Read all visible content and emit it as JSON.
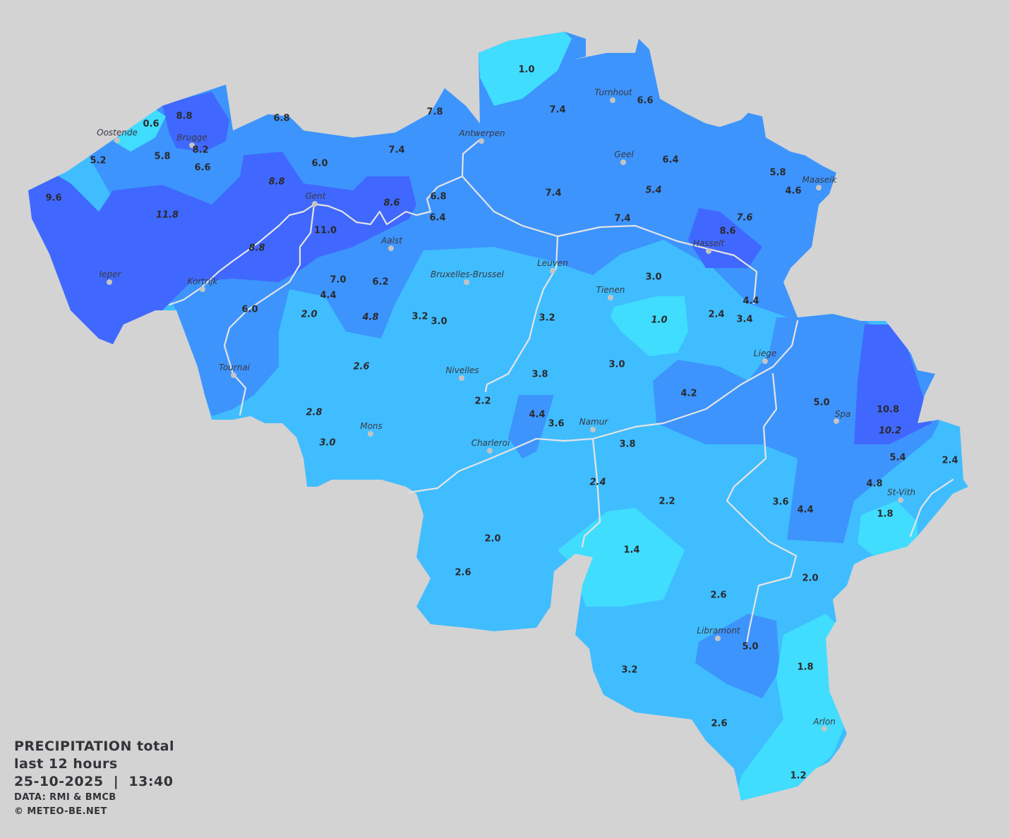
{
  "map": {
    "colors": {
      "background": "#d3d3d3",
      "level_cyan": "#40ddfe",
      "level_light": "#40bdfe",
      "level_mid": "#3d94fd",
      "level_dark": "#4068fe",
      "rivers": "#e4e4e4"
    },
    "cities": [
      "Oostende",
      "Brugge",
      "Antwerpen",
      "Turnhout",
      "Geel",
      "Maaseik",
      "Gent",
      "Aalst",
      "Hasselt",
      "Leuven",
      "Bruxelles-Brussel",
      "Ieper",
      "Kortrijk",
      "Tienen",
      "Liege",
      "Tournai",
      "Nivelles",
      "Spa",
      "Namur",
      "Mons",
      "Charleroi",
      "St-Vith",
      "Libramont",
      "Arlon"
    ],
    "values": [
      {
        "v": "1.0",
        "italic": false
      },
      {
        "v": "7.8",
        "italic": false
      },
      {
        "v": "7.4",
        "italic": false
      },
      {
        "v": "6.6",
        "italic": false
      },
      {
        "v": "8.8",
        "italic": false
      },
      {
        "v": "0.6",
        "italic": false
      },
      {
        "v": "8.2",
        "italic": false
      },
      {
        "v": "6.8",
        "italic": false
      },
      {
        "v": "5.2",
        "italic": false
      },
      {
        "v": "5.8",
        "italic": false
      },
      {
        "v": "6.6",
        "italic": false
      },
      {
        "v": "6.0",
        "italic": false
      },
      {
        "v": "7.4",
        "italic": false
      },
      {
        "v": "6.4",
        "italic": false
      },
      {
        "v": "5.8",
        "italic": false
      },
      {
        "v": "4.6",
        "italic": false
      },
      {
        "v": "9.6",
        "italic": false
      },
      {
        "v": "8.8",
        "italic": true
      },
      {
        "v": "8.6",
        "italic": true
      },
      {
        "v": "6.8",
        "italic": false
      },
      {
        "v": "7.4",
        "italic": false
      },
      {
        "v": "5.4",
        "italic": true
      },
      {
        "v": "11.8",
        "italic": true
      },
      {
        "v": "6.4",
        "italic": false
      },
      {
        "v": "7.4",
        "italic": false
      },
      {
        "v": "7.6",
        "italic": true
      },
      {
        "v": "11.0",
        "italic": false
      },
      {
        "v": "8.6",
        "italic": false
      },
      {
        "v": "8.8",
        "italic": true
      },
      {
        "v": "3.0",
        "italic": false
      },
      {
        "v": "7.0",
        "italic": false
      },
      {
        "v": "6.2",
        "italic": false
      },
      {
        "v": "4.4",
        "italic": false
      },
      {
        "v": "4.4",
        "italic": false
      },
      {
        "v": "6.0",
        "italic": false
      },
      {
        "v": "2.0",
        "italic": true
      },
      {
        "v": "4.8",
        "italic": true
      },
      {
        "v": "3.2",
        "italic": false
      },
      {
        "v": "3.0",
        "italic": false
      },
      {
        "v": "3.2",
        "italic": false
      },
      {
        "v": "2.4",
        "italic": false
      },
      {
        "v": "3.4",
        "italic": false
      },
      {
        "v": "1.0",
        "italic": true
      },
      {
        "v": "2.6",
        "italic": true
      },
      {
        "v": "3.0",
        "italic": false
      },
      {
        "v": "3.8",
        "italic": false
      },
      {
        "v": "4.2",
        "italic": false
      },
      {
        "v": "2.2",
        "italic": false
      },
      {
        "v": "5.0",
        "italic": false
      },
      {
        "v": "10.8",
        "italic": false
      },
      {
        "v": "2.8",
        "italic": true
      },
      {
        "v": "4.4",
        "italic": false
      },
      {
        "v": "3.6",
        "italic": false
      },
      {
        "v": "10.2",
        "italic": true
      },
      {
        "v": "3.0",
        "italic": true
      },
      {
        "v": "3.8",
        "italic": false
      },
      {
        "v": "5.4",
        "italic": false
      },
      {
        "v": "2.4",
        "italic": false
      },
      {
        "v": "2.4",
        "italic": true
      },
      {
        "v": "4.8",
        "italic": false
      },
      {
        "v": "2.2",
        "italic": false
      },
      {
        "v": "3.6",
        "italic": false
      },
      {
        "v": "4.4",
        "italic": false
      },
      {
        "v": "1.8",
        "italic": false
      },
      {
        "v": "2.0",
        "italic": false
      },
      {
        "v": "1.4",
        "italic": false
      },
      {
        "v": "2.6",
        "italic": false
      },
      {
        "v": "2.0",
        "italic": false
      },
      {
        "v": "2.6",
        "italic": false
      },
      {
        "v": "5.0",
        "italic": false
      },
      {
        "v": "1.8",
        "italic": false
      },
      {
        "v": "3.2",
        "italic": false
      },
      {
        "v": "2.6",
        "italic": false
      },
      {
        "v": "1.2",
        "italic": false
      }
    ]
  },
  "legend": {
    "title": "PRECIPITATION total",
    "period": "last 12 hours",
    "datetime": "25-10-2025  |  13:40",
    "source": "DATA: RMI & BMCB",
    "copyright": "© METEO-BE.NET"
  }
}
